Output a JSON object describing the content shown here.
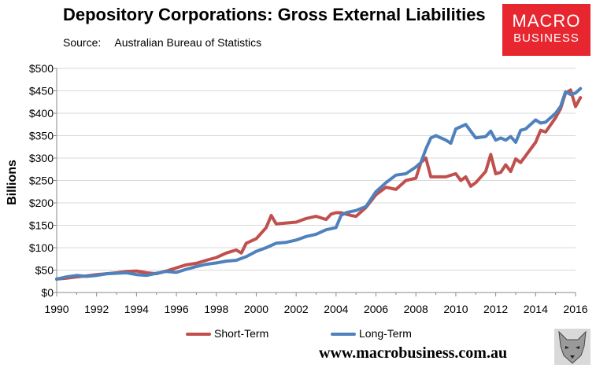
{
  "header": {
    "title": "Depository Corporations: Gross External Liabilities",
    "source_label": "Source:",
    "source_value": "Australian Bureau of Statistics"
  },
  "logo": {
    "line1": "MACRO",
    "line2": "BUSINESS"
  },
  "footer": {
    "url": "www.macrobusiness.com.au"
  },
  "colors": {
    "short_term": "#c0504d",
    "long_term": "#4f81bd"
  },
  "chart_data": {
    "type": "line",
    "title": "Depository Corporations: Gross External Liabilities",
    "xlabel": "",
    "ylabel": "Billions",
    "xlim": [
      1990,
      2016
    ],
    "ylim": [
      0,
      500
    ],
    "x_ticks": [
      1990,
      1992,
      1994,
      1996,
      1998,
      2000,
      2002,
      2004,
      2006,
      2008,
      2010,
      2012,
      2014,
      2016
    ],
    "y_ticks": [
      0,
      50,
      100,
      150,
      200,
      250,
      300,
      350,
      400,
      450,
      500
    ],
    "y_tick_labels": [
      "$0",
      "$50",
      "$100",
      "$150",
      "$200",
      "$250",
      "$300",
      "$350",
      "$400",
      "$450",
      "$500"
    ],
    "legend_position": "bottom",
    "series": [
      {
        "name": "Short-Term",
        "points": [
          [
            1990,
            30
          ],
          [
            1990.5,
            32
          ],
          [
            1991,
            35
          ],
          [
            1991.5,
            37
          ],
          [
            1992,
            40
          ],
          [
            1992.5,
            42
          ],
          [
            1993,
            44
          ],
          [
            1993.5,
            47
          ],
          [
            1994,
            48
          ],
          [
            1994.5,
            44
          ],
          [
            1995,
            42
          ],
          [
            1995.5,
            48
          ],
          [
            1996,
            55
          ],
          [
            1996.5,
            62
          ],
          [
            1997,
            65
          ],
          [
            1997.5,
            72
          ],
          [
            1998,
            78
          ],
          [
            1998.5,
            88
          ],
          [
            1999,
            95
          ],
          [
            1999.25,
            88
          ],
          [
            1999.5,
            110
          ],
          [
            2000,
            120
          ],
          [
            2000.5,
            145
          ],
          [
            2000.75,
            172
          ],
          [
            2001,
            153
          ],
          [
            2001.5,
            155
          ],
          [
            2002,
            157
          ],
          [
            2002.5,
            165
          ],
          [
            2003,
            170
          ],
          [
            2003.5,
            163
          ],
          [
            2003.75,
            175
          ],
          [
            2004,
            178
          ],
          [
            2004.25,
            178
          ],
          [
            2004.5,
            175
          ],
          [
            2004.75,
            172
          ],
          [
            2005,
            170
          ],
          [
            2005.5,
            190
          ],
          [
            2006,
            218
          ],
          [
            2006.5,
            235
          ],
          [
            2007,
            230
          ],
          [
            2007.5,
            250
          ],
          [
            2008,
            255
          ],
          [
            2008.25,
            290
          ],
          [
            2008.5,
            300
          ],
          [
            2008.75,
            258
          ],
          [
            2009,
            258
          ],
          [
            2009.5,
            258
          ],
          [
            2010,
            265
          ],
          [
            2010.25,
            250
          ],
          [
            2010.5,
            258
          ],
          [
            2010.75,
            237
          ],
          [
            2011,
            245
          ],
          [
            2011.5,
            270
          ],
          [
            2011.75,
            308
          ],
          [
            2012,
            265
          ],
          [
            2012.25,
            268
          ],
          [
            2012.5,
            285
          ],
          [
            2012.75,
            270
          ],
          [
            2013,
            298
          ],
          [
            2013.25,
            290
          ],
          [
            2013.5,
            305
          ],
          [
            2014,
            335
          ],
          [
            2014.25,
            362
          ],
          [
            2014.5,
            358
          ],
          [
            2015,
            390
          ],
          [
            2015.25,
            410
          ],
          [
            2015.5,
            445
          ],
          [
            2015.75,
            452
          ],
          [
            2016,
            415
          ],
          [
            2016.25,
            435
          ]
        ]
      },
      {
        "name": "Long-Term",
        "points": [
          [
            1990,
            30
          ],
          [
            1990.5,
            35
          ],
          [
            1991,
            38
          ],
          [
            1991.5,
            36
          ],
          [
            1992,
            38
          ],
          [
            1992.5,
            42
          ],
          [
            1993,
            43
          ],
          [
            1993.5,
            44
          ],
          [
            1994,
            40
          ],
          [
            1994.5,
            38
          ],
          [
            1995,
            43
          ],
          [
            1995.5,
            47
          ],
          [
            1996,
            45
          ],
          [
            1996.5,
            52
          ],
          [
            1997,
            58
          ],
          [
            1997.5,
            63
          ],
          [
            1998,
            66
          ],
          [
            1998.5,
            70
          ],
          [
            1999,
            72
          ],
          [
            1999.5,
            80
          ],
          [
            2000,
            92
          ],
          [
            2000.5,
            100
          ],
          [
            2001,
            110
          ],
          [
            2001.5,
            112
          ],
          [
            2002,
            117
          ],
          [
            2002.5,
            125
          ],
          [
            2003,
            130
          ],
          [
            2003.5,
            140
          ],
          [
            2004,
            145
          ],
          [
            2004.25,
            172
          ],
          [
            2004.5,
            178
          ],
          [
            2005,
            183
          ],
          [
            2005.5,
            192
          ],
          [
            2006,
            225
          ],
          [
            2006.5,
            245
          ],
          [
            2007,
            262
          ],
          [
            2007.5,
            265
          ],
          [
            2008,
            280
          ],
          [
            2008.25,
            290
          ],
          [
            2008.5,
            320
          ],
          [
            2008.75,
            345
          ],
          [
            2009,
            350
          ],
          [
            2009.5,
            340
          ],
          [
            2009.75,
            333
          ],
          [
            2010,
            365
          ],
          [
            2010.5,
            375
          ],
          [
            2011,
            345
          ],
          [
            2011.5,
            348
          ],
          [
            2011.75,
            360
          ],
          [
            2012,
            340
          ],
          [
            2012.25,
            345
          ],
          [
            2012.5,
            340
          ],
          [
            2012.75,
            348
          ],
          [
            2013,
            335
          ],
          [
            2013.25,
            362
          ],
          [
            2013.5,
            365
          ],
          [
            2014,
            385
          ],
          [
            2014.25,
            378
          ],
          [
            2014.5,
            380
          ],
          [
            2015,
            400
          ],
          [
            2015.25,
            415
          ],
          [
            2015.5,
            448
          ],
          [
            2015.75,
            442
          ],
          [
            2016,
            445
          ],
          [
            2016.25,
            455
          ]
        ]
      }
    ]
  }
}
